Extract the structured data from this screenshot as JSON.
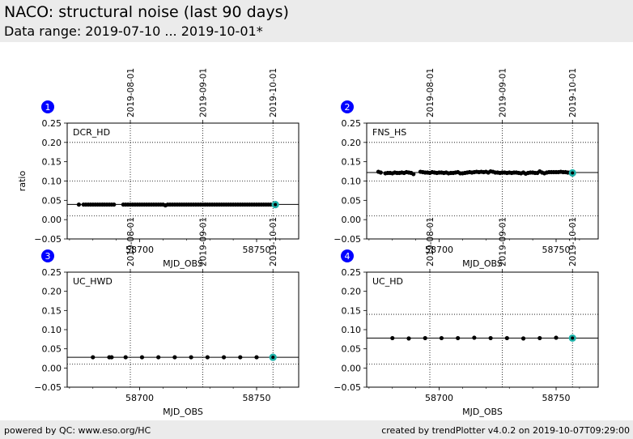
{
  "header": {
    "title": "NACO: structural noise (last 90 days)",
    "subtitle": "Data range: 2019-07-10 ... 2019-10-01*"
  },
  "footer": {
    "left": "powered by QC: www.eso.org/HC",
    "right": "created by trendPlotter v4.0.2 on 2019-10-07T09:29:00"
  },
  "colors": {
    "marker": "#000000",
    "last_point": "#20b2aa",
    "badge": "#0000ff",
    "header_bg": "#ebebeb"
  },
  "chart_data": [
    {
      "type": "scatter",
      "badge": "1",
      "label": "DCR_HD",
      "xlabel": "MJD_OBS",
      "ylabel": "ratio",
      "xlim": [
        58669,
        58768
      ],
      "ylim": [
        -0.05,
        0.25
      ],
      "yticks": [
        "−0.05",
        "0.00",
        "0.05",
        "0.10",
        "0.15",
        "0.20",
        "0.25"
      ],
      "xticks": [
        {
          "value": 58700,
          "label": "58700"
        },
        {
          "value": 58750,
          "label": "58750"
        }
      ],
      "date_ticks": [
        {
          "value": 58696,
          "label": "2019-08-01"
        },
        {
          "value": 58727,
          "label": "2019-09-01"
        },
        {
          "value": 58757,
          "label": "2019-10-01"
        }
      ],
      "hlines": [
        0.0395,
        0.01,
        0.1,
        0.2
      ],
      "x": [
        58674,
        58676,
        58677,
        58678,
        58679,
        58680,
        58681,
        58682,
        58683,
        58684,
        58685,
        58686,
        58687,
        58688,
        58689,
        58693,
        58694,
        58695,
        58696,
        58697,
        58698,
        58699,
        58700,
        58701,
        58702,
        58703,
        58704,
        58705,
        58706,
        58707,
        58708,
        58709,
        58710,
        58711,
        58712,
        58713,
        58714,
        58715,
        58716,
        58717,
        58718,
        58719,
        58720,
        58721,
        58722,
        58723,
        58724,
        58725,
        58726,
        58727,
        58728,
        58729,
        58730,
        58731,
        58732,
        58733,
        58734,
        58735,
        58736,
        58737,
        58738,
        58739,
        58740,
        58741,
        58742,
        58743,
        58744,
        58745,
        58746,
        58747,
        58748,
        58749,
        58750,
        58751,
        58752,
        58753,
        58754,
        58755,
        58756,
        58757,
        58758
      ],
      "y": [
        0.039,
        0.039,
        0.039,
        0.039,
        0.039,
        0.039,
        0.039,
        0.039,
        0.039,
        0.039,
        0.039,
        0.039,
        0.039,
        0.039,
        0.039,
        0.039,
        0.039,
        0.039,
        0.039,
        0.039,
        0.039,
        0.039,
        0.039,
        0.039,
        0.039,
        0.039,
        0.039,
        0.039,
        0.039,
        0.039,
        0.039,
        0.039,
        0.039,
        0.037,
        0.039,
        0.039,
        0.039,
        0.039,
        0.039,
        0.039,
        0.039,
        0.039,
        0.039,
        0.039,
        0.039,
        0.039,
        0.039,
        0.039,
        0.039,
        0.039,
        0.039,
        0.039,
        0.039,
        0.039,
        0.039,
        0.039,
        0.039,
        0.039,
        0.039,
        0.039,
        0.039,
        0.039,
        0.039,
        0.039,
        0.039,
        0.039,
        0.039,
        0.039,
        0.039,
        0.039,
        0.039,
        0.039,
        0.039,
        0.039,
        0.039,
        0.039,
        0.039,
        0.039,
        0.039,
        0.039,
        0.039
      ],
      "last_point": [
        58758,
        0.039
      ]
    },
    {
      "type": "scatter",
      "badge": "2",
      "label": "FNS_HS",
      "xlabel": "MJD_OBS",
      "ylabel": "",
      "xlim": [
        58669,
        58768
      ],
      "ylim": [
        -0.05,
        0.25
      ],
      "yticks": [
        "−0.05",
        "0.00",
        "0.05",
        "0.10",
        "0.15",
        "0.20",
        "0.25"
      ],
      "xticks": [
        {
          "value": 58700,
          "label": "58700"
        },
        {
          "value": 58750,
          "label": "58750"
        }
      ],
      "date_ticks": [
        {
          "value": 58696,
          "label": "2019-08-01"
        },
        {
          "value": 58727,
          "label": "2019-09-01"
        },
        {
          "value": 58757,
          "label": "2019-10-01"
        }
      ],
      "hlines": [
        0.122,
        0.01,
        0.1,
        0.2
      ],
      "x": [
        58674,
        58675,
        58677,
        58678,
        58679,
        58680,
        58681,
        58682,
        58683,
        58684,
        58685,
        58686,
        58687,
        58688,
        58689,
        58692,
        58693,
        58694,
        58695,
        58696,
        58697,
        58698,
        58699,
        58700,
        58701,
        58702,
        58703,
        58704,
        58705,
        58706,
        58707,
        58708,
        58709,
        58710,
        58711,
        58712,
        58713,
        58714,
        58715,
        58716,
        58717,
        58718,
        58719,
        58720,
        58721,
        58722,
        58723,
        58724,
        58725,
        58726,
        58727,
        58728,
        58729,
        58730,
        58731,
        58732,
        58733,
        58734,
        58735,
        58736,
        58737,
        58738,
        58739,
        58740,
        58741,
        58742,
        58743,
        58744,
        58745,
        58746,
        58747,
        58748,
        58749,
        58750,
        58751,
        58752,
        58753,
        58754,
        58755,
        58756,
        58757
      ],
      "y": [
        0.124,
        0.122,
        0.12,
        0.121,
        0.121,
        0.12,
        0.122,
        0.121,
        0.121,
        0.122,
        0.121,
        0.123,
        0.122,
        0.121,
        0.118,
        0.124,
        0.123,
        0.122,
        0.122,
        0.121,
        0.123,
        0.122,
        0.121,
        0.122,
        0.122,
        0.121,
        0.122,
        0.12,
        0.121,
        0.121,
        0.122,
        0.123,
        0.12,
        0.12,
        0.121,
        0.122,
        0.123,
        0.122,
        0.123,
        0.124,
        0.123,
        0.124,
        0.123,
        0.124,
        0.122,
        0.125,
        0.124,
        0.122,
        0.122,
        0.121,
        0.122,
        0.122,
        0.121,
        0.122,
        0.121,
        0.122,
        0.122,
        0.121,
        0.12,
        0.122,
        0.119,
        0.121,
        0.122,
        0.122,
        0.121,
        0.121,
        0.125,
        0.122,
        0.12,
        0.122,
        0.123,
        0.123,
        0.123,
        0.123,
        0.123,
        0.124,
        0.123,
        0.123,
        0.122,
        0.122,
        0.121
      ],
      "last_point": [
        58757,
        0.121
      ]
    },
    {
      "type": "scatter",
      "badge": "3",
      "label": "UC_HWD",
      "xlabel": "MJD_OBS",
      "ylabel": "",
      "xlim": [
        58669,
        58768
      ],
      "ylim": [
        -0.05,
        0.25
      ],
      "yticks": [
        "−0.05",
        "0.00",
        "0.05",
        "0.10",
        "0.15",
        "0.20",
        "0.25"
      ],
      "xticks": [
        {
          "value": 58700,
          "label": "58700"
        },
        {
          "value": 58750,
          "label": "58750"
        }
      ],
      "date_ticks": [
        {
          "value": 58696,
          "label": "2019-08-01"
        },
        {
          "value": 58727,
          "label": "2019-09-01"
        },
        {
          "value": 58757,
          "label": "2019-10-01"
        }
      ],
      "hlines": [
        0.028,
        0.01
      ],
      "x": [
        58680,
        58687,
        58688,
        58694,
        58701,
        58708,
        58715,
        58722,
        58729,
        58736,
        58743,
        58750,
        58757
      ],
      "y": [
        0.028,
        0.028,
        0.028,
        0.028,
        0.028,
        0.028,
        0.028,
        0.028,
        0.028,
        0.028,
        0.028,
        0.028,
        0.028
      ],
      "last_point": [
        58757,
        0.028
      ]
    },
    {
      "type": "scatter",
      "badge": "4",
      "label": "UC_HD",
      "xlabel": "MJD_OBS",
      "ylabel": "",
      "xlim": [
        58669,
        58768
      ],
      "ylim": [
        -0.05,
        0.25
      ],
      "yticks": [
        "−0.05",
        "0.00",
        "0.05",
        "0.10",
        "0.15",
        "0.20",
        "0.25"
      ],
      "xticks": [
        {
          "value": 58700,
          "label": "58700"
        },
        {
          "value": 58750,
          "label": "58750"
        }
      ],
      "date_ticks": [
        {
          "value": 58696,
          "label": "2019-08-01"
        },
        {
          "value": 58727,
          "label": "2019-09-01"
        },
        {
          "value": 58757,
          "label": "2019-10-01"
        }
      ],
      "hlines": [
        0.078,
        0.01,
        0.14
      ],
      "x": [
        58680,
        58687,
        58694,
        58701,
        58708,
        58715,
        58722,
        58729,
        58736,
        58743,
        58750,
        58757
      ],
      "y": [
        0.078,
        0.077,
        0.078,
        0.078,
        0.078,
        0.079,
        0.078,
        0.078,
        0.077,
        0.078,
        0.079,
        0.078
      ],
      "last_point": [
        58757,
        0.078
      ]
    }
  ]
}
